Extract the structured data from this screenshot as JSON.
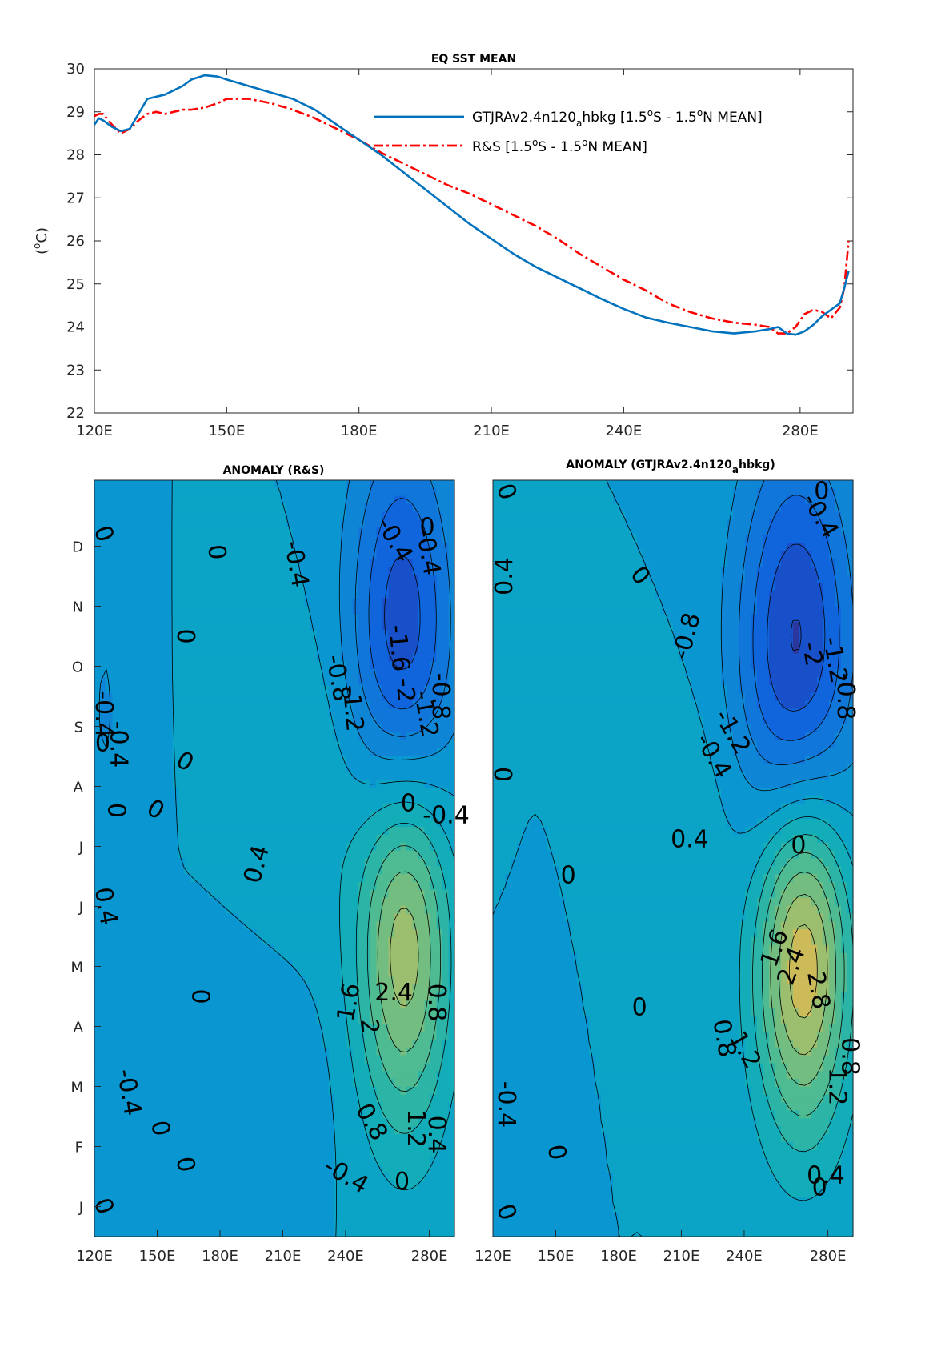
{
  "chart_data": [
    {
      "type": "line",
      "title": "EQ SST MEAN",
      "ylabel_main": "(",
      "ylabel_sup": "o",
      "ylabel_tail": "C)",
      "xlim": [
        120,
        292
      ],
      "ylim": [
        22,
        30
      ],
      "xticks": [
        120,
        150,
        180,
        210,
        240,
        280
      ],
      "xtick_labels": [
        "120E",
        "150E",
        "180E",
        "210E",
        "240E",
        "280E"
      ],
      "yticks": [
        22,
        23,
        24,
        25,
        26,
        27,
        28,
        29,
        30
      ],
      "ytick_labels": [
        "22",
        "23",
        "24",
        "25",
        "26",
        "27",
        "28",
        "29",
        "30"
      ],
      "legend_position": "top-right",
      "series": [
        {
          "name": "GTJRAv2.4n120ahbkg [1.5oS - 1.5oN MEAN]",
          "legend_parts": [
            "GTJRAv2.4n120",
            "a",
            "hbkg [1.5",
            "o",
            "S - 1.5",
            "o",
            "N MEAN]"
          ],
          "color": "#0072bd",
          "style": "solid",
          "x": [
            120,
            121,
            122,
            124,
            126,
            128,
            130,
            132,
            134,
            136,
            138,
            140,
            142,
            145,
            148,
            150,
            155,
            160,
            165,
            170,
            175,
            180,
            185,
            190,
            195,
            200,
            205,
            210,
            215,
            220,
            225,
            230,
            235,
            240,
            245,
            250,
            255,
            260,
            265,
            270,
            273,
            275,
            277,
            279,
            281,
            283,
            285,
            287,
            289,
            290,
            291
          ],
          "y": [
            28.7,
            28.85,
            28.8,
            28.65,
            28.55,
            28.6,
            28.95,
            29.3,
            29.35,
            29.4,
            29.5,
            29.6,
            29.75,
            29.85,
            29.82,
            29.75,
            29.6,
            29.45,
            29.3,
            29.05,
            28.7,
            28.35,
            28.0,
            27.6,
            27.2,
            26.8,
            26.4,
            26.05,
            25.7,
            25.4,
            25.15,
            24.9,
            24.65,
            24.42,
            24.22,
            24.1,
            24.0,
            23.9,
            23.85,
            23.9,
            23.95,
            24.0,
            23.85,
            23.82,
            23.9,
            24.05,
            24.25,
            24.4,
            24.55,
            24.9,
            25.3
          ]
        },
        {
          "name": "R&S [1.5oS - 1.5oN MEAN]",
          "legend_parts": [
            "R&S [1.5",
            "o",
            "S - 1.5",
            "o",
            "N MEAN]"
          ],
          "color": "#ff0000",
          "style": "dash-dot",
          "x": [
            120,
            121,
            122,
            124,
            126,
            128,
            130,
            132,
            134,
            136,
            138,
            140,
            142,
            145,
            148,
            150,
            155,
            160,
            165,
            170,
            175,
            180,
            185,
            190,
            195,
            200,
            205,
            210,
            215,
            220,
            225,
            230,
            235,
            240,
            245,
            250,
            255,
            260,
            265,
            270,
            273,
            275,
            277,
            279,
            281,
            283,
            285,
            287,
            289,
            290,
            291
          ],
          "y": [
            28.9,
            28.95,
            28.95,
            28.7,
            28.5,
            28.6,
            28.8,
            28.95,
            29.0,
            28.95,
            29.0,
            29.05,
            29.05,
            29.1,
            29.2,
            29.3,
            29.3,
            29.2,
            29.05,
            28.85,
            28.6,
            28.35,
            28.05,
            27.8,
            27.55,
            27.3,
            27.1,
            26.85,
            26.6,
            26.35,
            26.05,
            25.7,
            25.4,
            25.1,
            24.85,
            24.55,
            24.35,
            24.2,
            24.1,
            24.05,
            24.0,
            23.85,
            23.85,
            24.0,
            24.3,
            24.4,
            24.35,
            24.2,
            24.45,
            24.9,
            26.0
          ]
        }
      ]
    },
    {
      "type": "heatmap",
      "title": "ANOMALY (R&S)",
      "xticks": [
        120,
        150,
        180,
        210,
        240,
        280
      ],
      "xtick_labels": [
        "120E",
        "150E",
        "180E",
        "210E",
        "240E",
        "280E"
      ],
      "xlim": [
        120,
        292
      ],
      "ytick_labels": [
        "J",
        "F",
        "M",
        "A",
        "M",
        "J",
        "J",
        "A",
        "S",
        "O",
        "N",
        "D"
      ],
      "colormap": "parula",
      "contour_interval": 0.4,
      "anomalies": [
        {
          "x": 268,
          "m": 5.2,
          "sx": 16,
          "sy": 2.3,
          "v": 2.6
        },
        {
          "x": 267,
          "m": 9.6,
          "sx": 18,
          "sy": 2.6,
          "v": -2.1
        },
        {
          "x": 125,
          "m": 8.8,
          "sx": 4,
          "sy": 1.0,
          "v": -0.5
        },
        {
          "x": 140,
          "m": 4.6,
          "sx": 6,
          "sy": 2.4,
          "v": -0.3
        },
        {
          "x": 200,
          "m": 2.3,
          "sx": 22,
          "sy": 1.4,
          "v": -0.35
        },
        {
          "x": 225,
          "m": 7.5,
          "sx": 20,
          "sy": 1.8,
          "v": 0.35
        }
      ],
      "contour_labels": [
        {
          "text": "0",
          "x": 124,
          "m": 11.7,
          "r": 70
        },
        {
          "text": "0",
          "x": 178,
          "m": 11.4,
          "r": 85
        },
        {
          "text": "-0.4",
          "x": 216,
          "m": 11.2,
          "r": 80
        },
        {
          "text": "-0.4",
          "x": 263,
          "m": 11.6,
          "r": 60
        },
        {
          "text": "0",
          "x": 279,
          "m": 11.8,
          "r": 0
        },
        {
          "text": "-0.4",
          "x": 279,
          "m": 11.4,
          "r": 80
        },
        {
          "text": "0",
          "x": 163,
          "m": 10.0,
          "r": 90
        },
        {
          "text": "-1.6",
          "x": 265,
          "m": 9.8,
          "r": 85
        },
        {
          "text": "-2",
          "x": 268,
          "m": 9.1,
          "r": 85
        },
        {
          "text": "-1.2",
          "x": 243,
          "m": 8.8,
          "r": 85
        },
        {
          "text": "-0.8",
          "x": 236,
          "m": 9.3,
          "r": 80
        },
        {
          "text": "-1.2",
          "x": 278,
          "m": 8.7,
          "r": 80
        },
        {
          "text": "-0.8",
          "x": 285,
          "m": 9.0,
          "r": 90
        },
        {
          "text": "-0.4",
          "x": 124,
          "m": 8.7,
          "r": 90
        },
        {
          "text": "0",
          "x": 124,
          "m": 8.2,
          "r": 0
        },
        {
          "text": "-0.4",
          "x": 131,
          "m": 8.2,
          "r": 90
        },
        {
          "text": "0",
          "x": 163,
          "m": 7.9,
          "r": 30
        },
        {
          "text": "0",
          "x": 130,
          "m": 7.1,
          "r": 90
        },
        {
          "text": "0",
          "x": 149,
          "m": 7.1,
          "r": 30
        },
        {
          "text": "0",
          "x": 270,
          "m": 7.2,
          "r": 0
        },
        {
          "text": "-0.4",
          "x": 288,
          "m": 7.0,
          "r": 0
        },
        {
          "text": "0.4",
          "x": 198,
          "m": 6.2,
          "r": -75
        },
        {
          "text": "0.4",
          "x": 125,
          "m": 5.5,
          "r": 80
        },
        {
          "text": "0",
          "x": 170,
          "m": 4.0,
          "r": 90
        },
        {
          "text": "2.4",
          "x": 263,
          "m": 4.05,
          "r": 0
        },
        {
          "text": "1.6",
          "x": 242,
          "m": 3.9,
          "r": -80
        },
        {
          "text": "2",
          "x": 251,
          "m": 3.5,
          "r": 85
        },
        {
          "text": "0.8",
          "x": 283,
          "m": 3.9,
          "r": 90
        },
        {
          "text": "-0.4",
          "x": 136,
          "m": 2.4,
          "r": 80
        },
        {
          "text": "0.8",
          "x": 252,
          "m": 1.9,
          "r": 60
        },
        {
          "text": "0",
          "x": 151,
          "m": 1.8,
          "r": 80
        },
        {
          "text": "1.2",
          "x": 273,
          "m": 1.8,
          "r": 90
        },
        {
          "text": "0.4",
          "x": 283,
          "m": 1.7,
          "r": 90
        },
        {
          "text": "0",
          "x": 163,
          "m": 1.2,
          "r": 80
        },
        {
          "text": "-0.4",
          "x": 240,
          "m": 1.0,
          "r": 30
        },
        {
          "text": "0",
          "x": 267,
          "m": 0.9,
          "r": 0
        },
        {
          "text": "0",
          "x": 124,
          "m": 0.5,
          "r": 70
        }
      ]
    },
    {
      "type": "heatmap",
      "title_main": "ANOMALY (GTJRAv2.4n120",
      "title_sub": "a",
      "title_tail": "hbkg)",
      "xticks": [
        120,
        150,
        180,
        210,
        240,
        280
      ],
      "xtick_labels": [
        "120E",
        "150E",
        "180E",
        "210E",
        "240E",
        "280E"
      ],
      "xlim": [
        120,
        292
      ],
      "colormap": "parula",
      "contour_interval": 0.4,
      "anomalies": [
        {
          "x": 268,
          "m": 4.8,
          "sx": 16,
          "sy": 2.1,
          "v": 3.0
        },
        {
          "x": 265,
          "m": 9.5,
          "sx": 20,
          "sy": 2.6,
          "v": -2.2
        },
        {
          "x": 125,
          "m": 11.0,
          "sx": 6,
          "sy": 2.0,
          "v": 0.25
        },
        {
          "x": 140,
          "m": 2.6,
          "sx": 8,
          "sy": 1.6,
          "v": -0.35
        },
        {
          "x": 210,
          "m": 7.0,
          "sx": 25,
          "sy": 1.4,
          "v": 0.3
        }
      ],
      "contour_labels": [
        {
          "text": "0",
          "x": 126,
          "m": 12.4,
          "r": 70
        },
        {
          "text": "0",
          "x": 277,
          "m": 12.4,
          "r": 0
        },
        {
          "text": "-0.4",
          "x": 276,
          "m": 12.0,
          "r": 60
        },
        {
          "text": "0.4",
          "x": 126,
          "m": 11.0,
          "r": -90
        },
        {
          "text": "0",
          "x": 190,
          "m": 11.0,
          "r": 50
        },
        {
          "text": "-0.8",
          "x": 213,
          "m": 10.0,
          "r": -75
        },
        {
          "text": "-2",
          "x": 272,
          "m": 9.7,
          "r": 80
        },
        {
          "text": "-1.2",
          "x": 283,
          "m": 9.6,
          "r": 80
        },
        {
          "text": "-0.8",
          "x": 288,
          "m": 9.0,
          "r": 90
        },
        {
          "text": "-1.2",
          "x": 234,
          "m": 8.4,
          "r": 60
        },
        {
          "text": "-0.4",
          "x": 225,
          "m": 8.0,
          "r": 60
        },
        {
          "text": "0",
          "x": 126,
          "m": 7.7,
          "r": -90
        },
        {
          "text": "0.4",
          "x": 214,
          "m": 6.6,
          "r": 0
        },
        {
          "text": "0",
          "x": 266,
          "m": 6.5,
          "r": 0
        },
        {
          "text": "0",
          "x": 156,
          "m": 6.0,
          "r": 0
        },
        {
          "text": "1.6",
          "x": 255,
          "m": 4.8,
          "r": -70
        },
        {
          "text": "2.4",
          "x": 263,
          "m": 4.5,
          "r": -70
        },
        {
          "text": "2.8",
          "x": 275,
          "m": 4.1,
          "r": 80
        },
        {
          "text": "0.8",
          "x": 230,
          "m": 3.3,
          "r": 80
        },
        {
          "text": "1.2",
          "x": 240,
          "m": 3.1,
          "r": 60
        },
        {
          "text": "0.8",
          "x": 290,
          "m": 3.0,
          "r": 90
        },
        {
          "text": "1.2",
          "x": 284,
          "m": 2.5,
          "r": 90
        },
        {
          "text": "0",
          "x": 190,
          "m": 3.8,
          "r": 0
        },
        {
          "text": "-0.4",
          "x": 126,
          "m": 2.2,
          "r": 90
        },
        {
          "text": "0",
          "x": 150,
          "m": 1.4,
          "r": 80
        },
        {
          "text": "0.4",
          "x": 279,
          "m": 1.0,
          "r": 0
        },
        {
          "text": "0",
          "x": 276,
          "m": 0.8,
          "r": 0
        },
        {
          "text": "0",
          "x": 126,
          "m": 0.4,
          "r": 70
        }
      ]
    }
  ]
}
